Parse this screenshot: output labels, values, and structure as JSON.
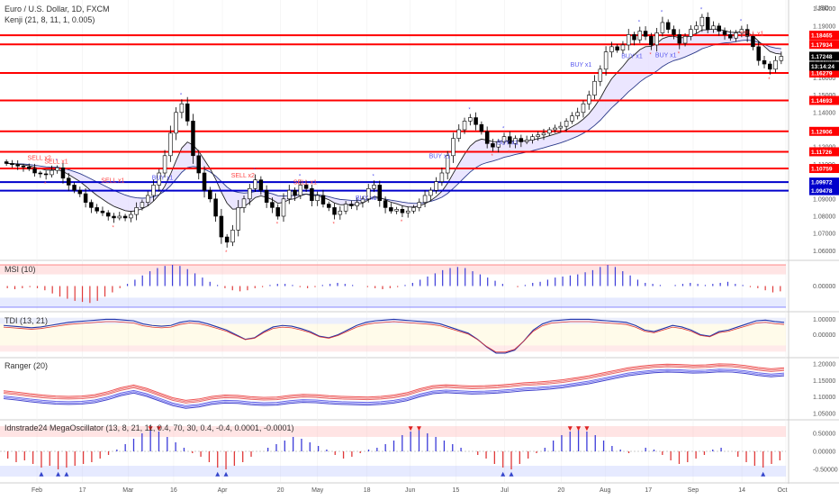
{
  "header": {
    "symbol_title": "Euro / U.S. Dollar, 1D, FXCM",
    "indicator_title": "Kenji (21, 8, 11, 1, 0.005)",
    "currency_label": "USD"
  },
  "colors": {
    "up_candle": "#ffffff",
    "down_candle": "#000000",
    "resistance": "#ff0000",
    "support": "#0000cc",
    "ma_fill": "#e6e0ff",
    "sell_signal": "#ff4444",
    "buy_signal": "#5555ee",
    "tag_current": "#000000"
  },
  "chart_data": [
    {
      "type": "candlestick",
      "name_label": "",
      "ylim": [
        1.055,
        1.205
      ],
      "y_ticks": [
        "1.20000",
        "1.19000",
        "1.18000",
        "1.17000",
        "1.16000",
        "1.15000",
        "1.14000",
        "1.13000",
        "1.12000",
        "1.11000",
        "1.10000",
        "1.09000",
        "1.08000",
        "1.07000",
        "1.06000"
      ],
      "x_ticks": [
        "Feb",
        "17",
        "Mar",
        "16",
        "Apr",
        "20",
        "May",
        "18",
        "Jun",
        "15",
        "Jul",
        "20",
        "Aug",
        "17",
        "Sep",
        "14",
        "Oct"
      ],
      "x_tick_pos": [
        0.047,
        0.105,
        0.163,
        0.221,
        0.283,
        0.357,
        0.404,
        0.467,
        0.522,
        0.58,
        0.642,
        0.714,
        0.77,
        0.825,
        0.882,
        0.944,
        1.0
      ],
      "close": [
        1.1105,
        1.1098,
        1.109,
        1.1085,
        1.1075,
        1.105,
        1.1045,
        1.104,
        1.1065,
        1.108,
        1.102,
        1.098,
        1.095,
        1.093,
        1.088,
        1.085,
        1.083,
        1.082,
        1.08,
        1.079,
        1.08,
        1.079,
        1.081,
        1.085,
        1.088,
        1.092,
        1.098,
        1.105,
        1.115,
        1.128,
        1.14,
        1.145,
        1.135,
        1.115,
        1.105,
        1.095,
        1.09,
        1.08,
        1.068,
        1.065,
        1.072,
        1.085,
        1.09,
        1.096,
        1.101,
        1.095,
        1.088,
        1.085,
        1.08,
        1.09,
        1.095,
        1.092,
        1.098,
        1.096,
        1.089,
        1.092,
        1.087,
        1.085,
        1.081,
        1.083,
        1.087,
        1.086,
        1.088,
        1.09,
        1.096,
        1.098,
        1.089,
        1.085,
        1.083,
        1.084,
        1.082,
        1.083,
        1.085,
        1.088,
        1.092,
        1.095,
        1.1,
        1.105,
        1.115,
        1.125,
        1.13,
        1.135,
        1.137,
        1.133,
        1.129,
        1.122,
        1.12,
        1.123,
        1.126,
        1.122,
        1.125,
        1.123,
        1.124,
        1.126,
        1.127,
        1.128,
        1.13,
        1.131,
        1.132,
        1.135,
        1.138,
        1.14,
        1.145,
        1.15,
        1.158,
        1.165,
        1.175,
        1.178,
        1.176,
        1.179,
        1.185,
        1.182,
        1.187,
        1.184,
        1.179,
        1.186,
        1.192,
        1.188,
        1.185,
        1.18,
        1.184,
        1.188,
        1.19,
        1.195,
        1.188,
        1.19,
        1.187,
        1.185,
        1.183,
        1.186,
        1.188,
        1.184,
        1.178,
        1.17,
        1.168,
        1.165,
        1.17,
        1.1724
      ],
      "resistance_levels": [
        "1.18465",
        "1.17934",
        "1.16279",
        "1.14693",
        "1.12906",
        "1.11726",
        "1.10759"
      ],
      "resistance_values": [
        1.18465,
        1.17934,
        1.16279,
        1.14693,
        1.12906,
        1.11726,
        1.10759
      ],
      "support_levels": [
        "1.09972",
        "1.09478"
      ],
      "support_values": [
        1.09972,
        1.09478
      ],
      "last_price": "1.17248",
      "last_price_value": 1.17248,
      "countdown": "13:14:24",
      "signals": [
        {
          "text": "SELL x2",
          "type": "sell",
          "i": 10,
          "p": 1.1125
        },
        {
          "text": "SELL x1",
          "type": "sell",
          "i": 14,
          "p": 1.1105
        },
        {
          "text": "SELL x1",
          "type": "sell",
          "i": 33,
          "p": 1.0995
        },
        {
          "text": "BUY x1",
          "type": "buy",
          "i": 48,
          "p": 1.101
        },
        {
          "text": "SELL x2",
          "type": "sell",
          "i": 73,
          "p": 1.1025
        },
        {
          "text": "SELL x1",
          "type": "sell",
          "i": 92,
          "p": 1.0985
        },
        {
          "text": "BUY x1",
          "type": "buy",
          "i": 110,
          "p": 1.0895
        },
        {
          "text": "BUY x1",
          "type": "buy",
          "i": 133,
          "p": 1.1135
        },
        {
          "text": "BUY x1",
          "type": "buy",
          "i": 154,
          "p": 1.1215
        },
        {
          "text": "BUY x1",
          "type": "buy",
          "i": 176,
          "p": 1.1665
        },
        {
          "text": "BUY x1",
          "type": "buy",
          "i": 192,
          "p": 1.1715
        },
        {
          "text": "BUY x1",
          "type": "buy",
          "i": 202,
          "p": 1.172
        },
        {
          "text": "SELL x1",
          "type": "sell",
          "i": 228,
          "p": 1.1845
        }
      ]
    },
    {
      "type": "bar",
      "name_label": "MSI (10)",
      "ylim": [
        -1,
        1
      ],
      "y_ticks": [
        "0.00000"
      ],
      "values": [
        -0.1,
        -0.15,
        -0.1,
        -0.05,
        -0.1,
        -0.2,
        -0.35,
        -0.5,
        -0.6,
        -0.7,
        -0.75,
        -0.8,
        -0.7,
        -0.5,
        -0.3,
        -0.1,
        0.1,
        0.3,
        0.5,
        0.7,
        0.85,
        0.95,
        1.0,
        0.95,
        0.8,
        0.6,
        0.4,
        0.2,
        0.05,
        -0.1,
        -0.2,
        -0.25,
        -0.2,
        -0.1,
        -0.05,
        0.05,
        0.1,
        0.1,
        0.05,
        -0.05,
        -0.1,
        -0.05,
        0.05,
        0.1,
        0.15,
        0.1,
        0.05,
        0.0,
        -0.05,
        -0.1,
        -0.15,
        -0.1,
        -0.05,
        0.05,
        0.15,
        0.3,
        0.45,
        0.6,
        0.75,
        0.85,
        0.9,
        0.85,
        0.7,
        0.55,
        0.4,
        0.25,
        0.1,
        0.0,
        -0.05,
        0.05,
        0.15,
        0.2,
        0.3,
        0.4,
        0.45,
        0.5,
        0.55,
        0.65,
        0.75,
        0.9,
        1.0,
        0.9,
        0.7,
        0.5,
        0.3,
        0.15,
        0.1,
        0.05,
        0.0,
        0.05,
        0.1,
        0.15,
        0.1,
        0.05,
        0.1,
        0.15,
        0.2,
        0.1,
        0.05,
        -0.05,
        -0.1,
        -0.2,
        -0.3,
        -0.25
      ]
    },
    {
      "type": "line",
      "name_label": "TDI (13, 21)",
      "ylim": [
        -1.2,
        1.2
      ],
      "y_ticks": [
        "1.00000",
        "0.00000"
      ],
      "values": [
        0.6,
        0.55,
        0.5,
        0.45,
        0.5,
        0.6,
        0.7,
        0.8,
        0.85,
        0.9,
        0.95,
        1.0,
        1.0,
        0.95,
        0.9,
        0.7,
        0.6,
        0.55,
        0.6,
        0.8,
        0.9,
        0.85,
        0.7,
        0.5,
        0.3,
        0.0,
        -0.3,
        -0.2,
        0.2,
        0.5,
        0.6,
        0.55,
        0.4,
        0.2,
        -0.1,
        -0.2,
        0.0,
        0.3,
        0.6,
        0.8,
        0.9,
        0.95,
        1.0,
        0.95,
        0.9,
        0.85,
        0.8,
        0.7,
        0.5,
        0.3,
        0.1,
        -0.3,
        -0.8,
        -1.2,
        -1.2,
        -1.0,
        -0.4,
        0.3,
        0.7,
        0.9,
        0.95,
        1.0,
        1.0,
        1.0,
        0.95,
        0.9,
        0.85,
        0.8,
        0.6,
        0.3,
        0.2,
        0.4,
        0.6,
        0.5,
        0.3,
        0.0,
        -0.1,
        0.2,
        0.3,
        0.5,
        0.7,
        0.9,
        0.95,
        0.85,
        0.8
      ]
    },
    {
      "type": "line",
      "name_label": "Ranger (20)",
      "ylim": [
        1.045,
        1.205
      ],
      "y_ticks": [
        "1.20000",
        "1.15000",
        "1.10000",
        "1.05000"
      ],
      "values": [
        1.107,
        1.103,
        1.098,
        1.094,
        1.091,
        1.09,
        1.091,
        1.095,
        1.104,
        1.116,
        1.124,
        1.114,
        1.1,
        1.086,
        1.078,
        1.082,
        1.09,
        1.094,
        1.093,
        1.089,
        1.087,
        1.088,
        1.093,
        1.096,
        1.095,
        1.092,
        1.09,
        1.089,
        1.088,
        1.09,
        1.094,
        1.101,
        1.113,
        1.122,
        1.125,
        1.123,
        1.121,
        1.122,
        1.124,
        1.127,
        1.131,
        1.133,
        1.136,
        1.14,
        1.146,
        1.152,
        1.16,
        1.168,
        1.176,
        1.181,
        1.185,
        1.187,
        1.186,
        1.184,
        1.185,
        1.188,
        1.187,
        1.183,
        1.177,
        1.173,
        1.176
      ]
    },
    {
      "type": "bar",
      "name_label": "Idnstrade24 MegaOscillator (13, 8, 21, 11, 0.4, 70, 30, 0.4, -0.4, 0.0001, -0.0001)",
      "ylim": [
        -0.75,
        0.75
      ],
      "y_ticks": [
        "0.50000",
        "0.00000",
        "-0.50000"
      ],
      "values": [
        -0.2,
        -0.3,
        -0.25,
        -0.35,
        -0.45,
        -0.4,
        -0.5,
        -0.45,
        -0.4,
        -0.35,
        -0.3,
        -0.2,
        -0.1,
        0.05,
        0.2,
        0.35,
        0.5,
        0.6,
        0.55,
        0.4,
        0.25,
        0.1,
        -0.05,
        -0.15,
        -0.3,
        -0.45,
        -0.5,
        -0.4,
        -0.3,
        -0.15,
        0.0,
        0.1,
        0.2,
        0.3,
        0.4,
        0.35,
        0.25,
        0.15,
        0.05,
        -0.1,
        -0.2,
        -0.15,
        -0.05,
        0.05,
        0.1,
        0.2,
        0.3,
        0.45,
        0.55,
        0.6,
        0.5,
        0.4,
        0.3,
        0.2,
        0.1,
        0.0,
        -0.1,
        -0.2,
        -0.35,
        -0.45,
        -0.5,
        -0.35,
        -0.2,
        -0.05,
        0.1,
        0.3,
        0.45,
        0.55,
        0.6,
        0.55,
        0.45,
        0.3,
        0.15,
        0.05,
        -0.05,
        0.0,
        0.1,
        0.05,
        -0.1,
        -0.25,
        -0.35,
        -0.3,
        -0.2,
        -0.1,
        0.05,
        0.1,
        0.0,
        -0.15,
        -0.3,
        -0.4,
        -0.45,
        -0.35,
        -0.25
      ]
    }
  ]
}
